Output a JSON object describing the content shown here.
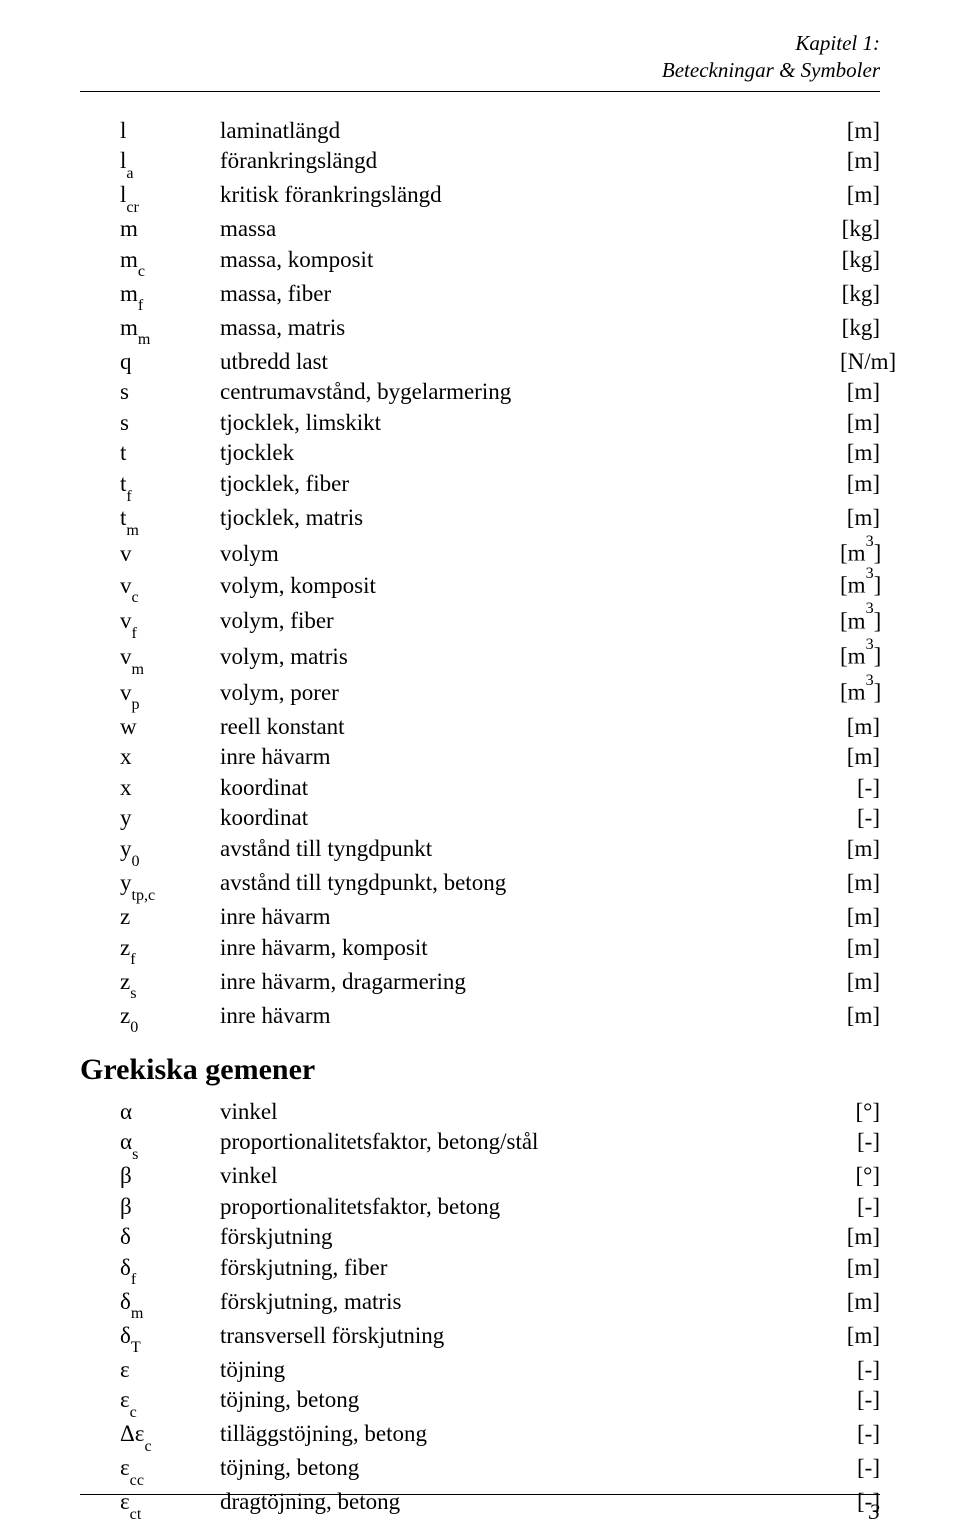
{
  "header": {
    "line1": "Kapitel 1:",
    "line2": "Beteckningar & Symboler"
  },
  "latin": [
    {
      "sym": "l",
      "sub": "",
      "desc": "laminatlängd",
      "unit": "[m]"
    },
    {
      "sym": "l",
      "sub": "a",
      "desc": "förankringslängd",
      "unit": "[m]"
    },
    {
      "sym": "l",
      "sub": "cr",
      "desc": "kritisk förankringslängd",
      "unit": "[m]"
    },
    {
      "sym": "m",
      "sub": "",
      "desc": "massa",
      "unit": "[kg]"
    },
    {
      "sym": "m",
      "sub": "c",
      "desc": "massa, komposit",
      "unit": "[kg]"
    },
    {
      "sym": "m",
      "sub": "f",
      "desc": "massa, fiber",
      "unit": "[kg]"
    },
    {
      "sym": "m",
      "sub": "m",
      "desc": "massa, matris",
      "unit": "[kg]"
    },
    {
      "sym": "q",
      "sub": "",
      "desc": "utbredd last",
      "unit": "[N/m]"
    },
    {
      "sym": "s",
      "sub": "",
      "desc": "centrumavstånd, bygelarmering",
      "unit": "[m]"
    },
    {
      "sym": "s",
      "sub": "",
      "desc": "tjocklek, limskikt",
      "unit": "[m]"
    },
    {
      "sym": "t",
      "sub": "",
      "desc": "tjocklek",
      "unit": "[m]"
    },
    {
      "sym": "t",
      "sub": "f",
      "desc": "tjocklek, fiber",
      "unit": "[m]"
    },
    {
      "sym": "t",
      "sub": "m",
      "desc": "tjocklek, matris",
      "unit": "[m]"
    },
    {
      "sym": "v",
      "sub": "",
      "desc": "volym",
      "unit_html": "[m<sup>3</sup>]"
    },
    {
      "sym": "v",
      "sub": "c",
      "desc": "volym, komposit",
      "unit_html": "[m<sup>3</sup>]"
    },
    {
      "sym": "v",
      "sub": "f",
      "desc": "volym, fiber",
      "unit_html": "[m<sup>3</sup>]"
    },
    {
      "sym": "v",
      "sub": "m",
      "desc": "volym, matris",
      "unit_html": "[m<sup>3</sup>]"
    },
    {
      "sym": "v",
      "sub": "p",
      "desc": "volym, porer",
      "unit_html": "[m<sup>3</sup>]"
    },
    {
      "sym": "w",
      "sub": "",
      "desc": "reell konstant",
      "unit": "[m]"
    },
    {
      "sym": "x",
      "sub": "",
      "desc": "inre hävarm",
      "unit": "[m]"
    },
    {
      "sym": "x",
      "sub": "",
      "desc": "koordinat",
      "unit": "[-]"
    },
    {
      "sym": "y",
      "sub": "",
      "desc": "koordinat",
      "unit": "[-]"
    },
    {
      "sym": "y",
      "sub": "0",
      "desc": "avstånd till tyngdpunkt",
      "unit": "[m]"
    },
    {
      "sym": "y",
      "sub": "tp,c",
      "desc": "avstånd till tyngdpunkt, betong",
      "unit": "[m]"
    },
    {
      "sym": "z",
      "sub": "",
      "desc": "inre hävarm",
      "unit": "[m]"
    },
    {
      "sym": "z",
      "sub": "f",
      "desc": "inre hävarm, komposit",
      "unit": "[m]"
    },
    {
      "sym": "z",
      "sub": "s",
      "desc": "inre hävarm, dragarmering",
      "unit": "[m]"
    },
    {
      "sym": "z",
      "sub": "0",
      "desc": "inre hävarm",
      "unit": "[m]"
    }
  ],
  "section_heading": "Grekiska gemener",
  "greek": [
    {
      "sym": "α",
      "sub": "",
      "desc": "vinkel",
      "unit": "[°]"
    },
    {
      "sym": "α",
      "sub": "s",
      "desc": "proportionalitetsfaktor, betong/stål",
      "unit": "[-]"
    },
    {
      "sym": "β",
      "sub": "",
      "desc": "vinkel",
      "unit": "[°]"
    },
    {
      "sym": "β",
      "sub": "",
      "desc": "proportionalitetsfaktor, betong",
      "unit": "[-]"
    },
    {
      "sym": "δ",
      "sub": "",
      "desc": "förskjutning",
      "unit": "[m]"
    },
    {
      "sym": "δ",
      "sub": "f",
      "desc": "förskjutning, fiber",
      "unit": "[m]"
    },
    {
      "sym": "δ",
      "sub": "m",
      "desc": "förskjutning, matris",
      "unit": "[m]"
    },
    {
      "sym": "δ",
      "sub": "T",
      "desc": "transversell förskjutning",
      "unit": "[m]"
    },
    {
      "sym": "ε",
      "sub": "",
      "desc": "töjning",
      "unit": "[-]"
    },
    {
      "sym": "ε",
      "sub": "c",
      "desc": "töjning, betong",
      "unit": "[-]"
    },
    {
      "sym": "Δε",
      "sub": "c",
      "desc": "tilläggstöjning, betong",
      "unit": "[-]"
    },
    {
      "sym": "ε",
      "sub": "cc",
      "desc": "töjning, betong",
      "unit": "[-]"
    },
    {
      "sym": "ε",
      "sub": "ct",
      "desc": "dragtöjning, betong",
      "unit": "[-]"
    }
  ],
  "page_number": "3"
}
